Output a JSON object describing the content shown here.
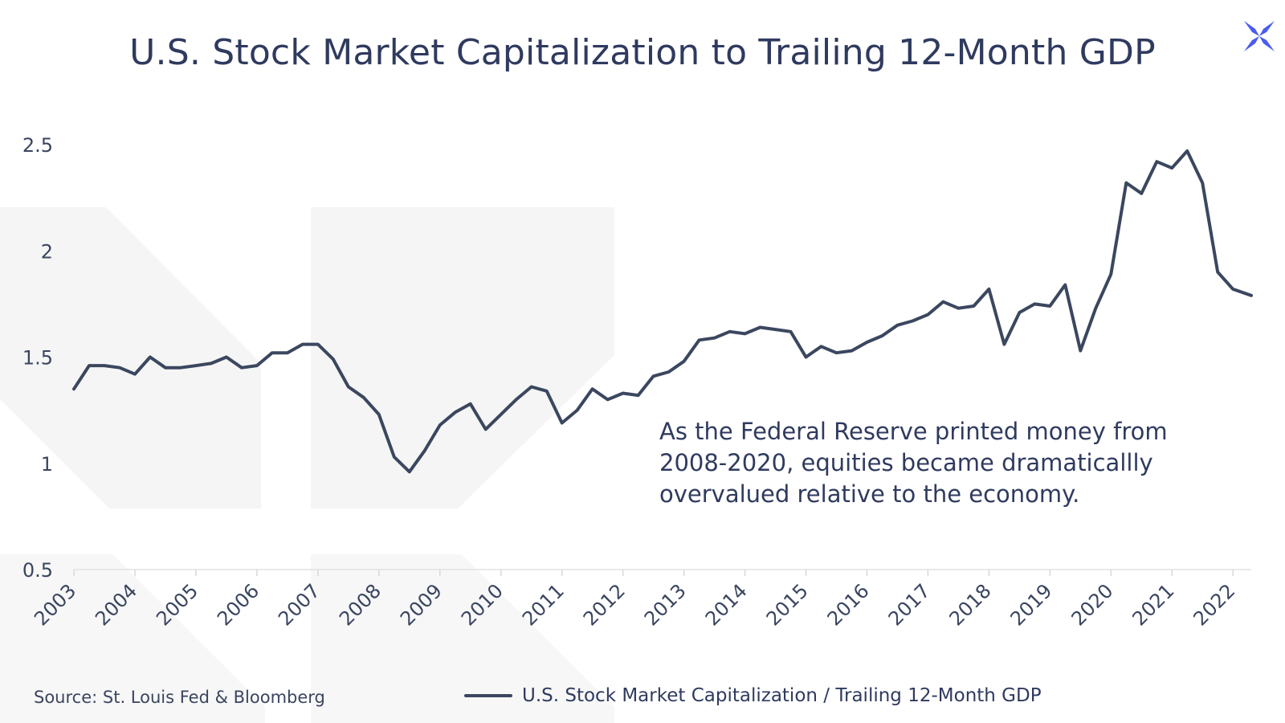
{
  "header": {
    "title": "U.S. Stock Market Capitalization to Trailing 12-Month GDP"
  },
  "annotation": {
    "lines": [
      "As the Federal Reserve printed money from",
      "2008-2020, equities became dramaticallly",
      "overvalued relative to the economy."
    ]
  },
  "footer": {
    "source": "Source: St. Louis Fed & Bloomberg"
  },
  "colors": {
    "line": "#3b475f",
    "title": "#2f3a5f",
    "logo": "#4a5cf0",
    "watermark": "#f4f4f4"
  },
  "icons": {
    "logo": "x-logo-icon"
  },
  "chart_data": {
    "type": "line",
    "title": "U.S. Stock Market Capitalization to Trailing 12-Month GDP",
    "xlabel": "",
    "ylabel": "",
    "x_ticks": [
      "2003",
      "2004",
      "2005",
      "2006",
      "2007",
      "2008",
      "2009",
      "2010",
      "2011",
      "2012",
      "2013",
      "2014",
      "2015",
      "2016",
      "2017",
      "2018",
      "2019",
      "2020",
      "2021",
      "2022"
    ],
    "y_ticks": [
      "2.5",
      "2",
      "1.5",
      "1",
      "0.5"
    ],
    "ylim": [
      0.5,
      2.5
    ],
    "xlim": [
      2003.0,
      2022.3
    ],
    "grid": false,
    "legend": "bottom-center",
    "series": [
      {
        "name": "U.S. Stock Market Capitalization / Trailing 12-Month GDP",
        "x": [
          2003.0,
          2003.25,
          2003.5,
          2003.75,
          2004.0,
          2004.25,
          2004.5,
          2004.75,
          2005.0,
          2005.25,
          2005.5,
          2005.75,
          2006.0,
          2006.25,
          2006.5,
          2006.75,
          2007.0,
          2007.25,
          2007.5,
          2007.75,
          2008.0,
          2008.25,
          2008.5,
          2008.75,
          2009.0,
          2009.25,
          2009.5,
          2009.75,
          2010.0,
          2010.25,
          2010.5,
          2010.75,
          2011.0,
          2011.25,
          2011.5,
          2011.75,
          2012.0,
          2012.25,
          2012.5,
          2012.75,
          2013.0,
          2013.25,
          2013.5,
          2013.75,
          2014.0,
          2014.25,
          2014.5,
          2014.75,
          2015.0,
          2015.25,
          2015.5,
          2015.75,
          2016.0,
          2016.25,
          2016.5,
          2016.75,
          2017.0,
          2017.25,
          2017.5,
          2017.75,
          2018.0,
          2018.25,
          2018.5,
          2018.75,
          2019.0,
          2019.25,
          2019.5,
          2019.75,
          2020.0,
          2020.25,
          2020.5,
          2020.75,
          2021.0,
          2021.25,
          2021.5,
          2021.75,
          2022.0,
          2022.3
        ],
        "values": [
          1.35,
          1.46,
          1.46,
          1.45,
          1.42,
          1.5,
          1.45,
          1.45,
          1.46,
          1.47,
          1.5,
          1.45,
          1.46,
          1.52,
          1.52,
          1.56,
          1.56,
          1.49,
          1.36,
          1.31,
          1.23,
          1.03,
          0.96,
          1.06,
          1.18,
          1.24,
          1.28,
          1.16,
          1.23,
          1.3,
          1.36,
          1.34,
          1.19,
          1.25,
          1.35,
          1.3,
          1.33,
          1.32,
          1.41,
          1.43,
          1.48,
          1.58,
          1.59,
          1.62,
          1.61,
          1.64,
          1.63,
          1.62,
          1.5,
          1.55,
          1.52,
          1.53,
          1.57,
          1.6,
          1.65,
          1.67,
          1.7,
          1.76,
          1.73,
          1.74,
          1.82,
          1.56,
          1.71,
          1.75,
          1.74,
          1.84,
          1.53,
          1.73,
          1.89,
          2.32,
          2.27,
          2.42,
          2.39,
          2.47,
          2.32,
          1.9,
          1.82,
          1.79
        ]
      }
    ]
  }
}
